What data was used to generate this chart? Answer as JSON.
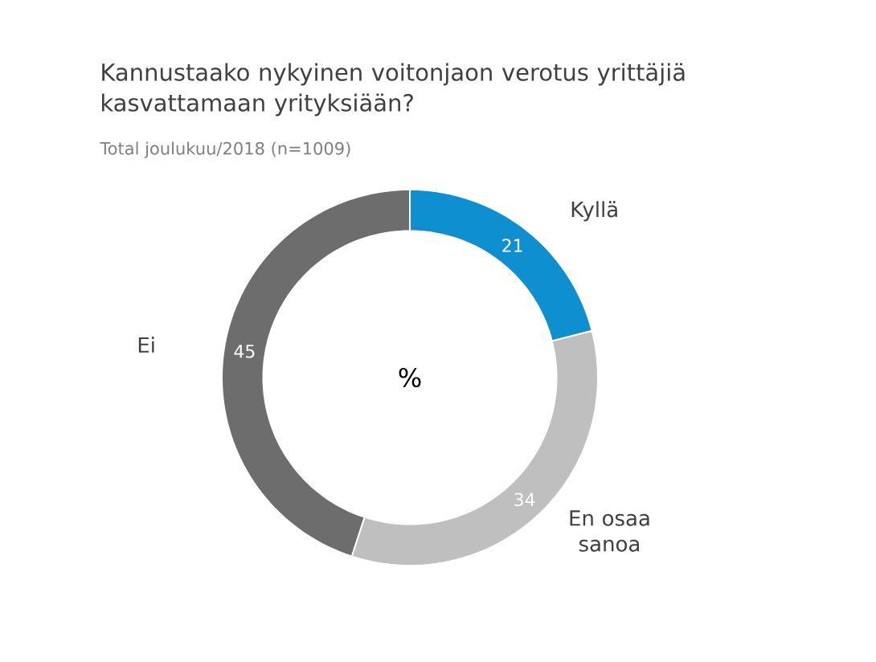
{
  "chart_data": {
    "type": "donut",
    "title": "Kannustaako nykyinen voitonjaon verotus yrittäjiä kasvattamaan yrityksiään?",
    "subtitle": "Total joulukuu/2018 (n=1009)",
    "categories": [
      "Kyllä",
      "En osaa sanoa",
      "Ei"
    ],
    "values": [
      21,
      34,
      45
    ],
    "colors": [
      "#0e8fcf",
      "#bfbfbf",
      "#6d6d6d"
    ],
    "data_labels": true,
    "annotations": [
      "%"
    ]
  }
}
